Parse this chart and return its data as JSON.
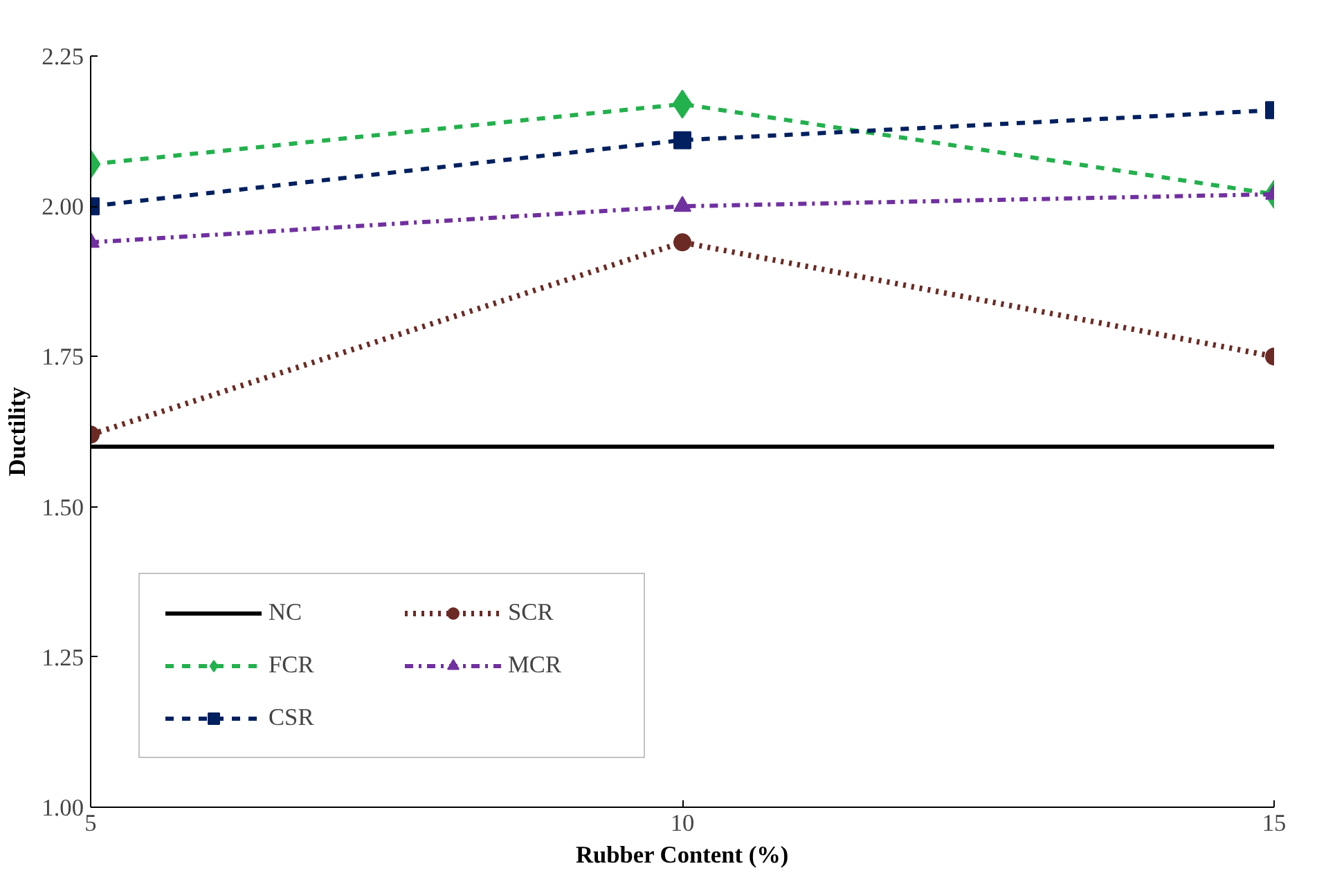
{
  "chart_data": {
    "type": "line",
    "xlabel": "Rubber Content (%)",
    "ylabel": "Ductility",
    "x": [
      5,
      10,
      15
    ],
    "xlim": [
      5,
      15
    ],
    "xticks": [
      5,
      10,
      15
    ],
    "ylim": [
      1.0,
      2.25
    ],
    "yticks": [
      {
        "value": 1.0,
        "label": "1.00"
      },
      {
        "value": 1.25,
        "label": "1.25"
      },
      {
        "value": 1.5,
        "label": "1.50"
      },
      {
        "value": 1.75,
        "label": "1.75"
      },
      {
        "value": 2.0,
        "label": "2.00"
      },
      {
        "value": 2.25,
        "label": "2.25"
      }
    ],
    "grid": false,
    "legend": "bottom left",
    "series": [
      {
        "name": "NC",
        "color": "#000000",
        "values": [
          1.6,
          1.6,
          1.6
        ],
        "marker": "none",
        "line_style": "solid"
      },
      {
        "name": "SCR",
        "color": "#6b2a24",
        "values": [
          1.62,
          1.94,
          1.75
        ],
        "marker": "circle",
        "line_style": "dotted"
      },
      {
        "name": "FCR",
        "color": "#22b14c",
        "values": [
          2.07,
          2.17,
          2.02
        ],
        "marker": "diamond",
        "line_style": "dashed"
      },
      {
        "name": "MCR",
        "color": "#7030a0",
        "values": [
          1.94,
          2.0,
          2.02
        ],
        "marker": "triangle",
        "line_style": "dashdot"
      },
      {
        "name": "CSR",
        "color": "#002060",
        "values": [
          2.0,
          2.11,
          2.16
        ],
        "marker": "square",
        "line_style": "dashed"
      }
    ]
  }
}
